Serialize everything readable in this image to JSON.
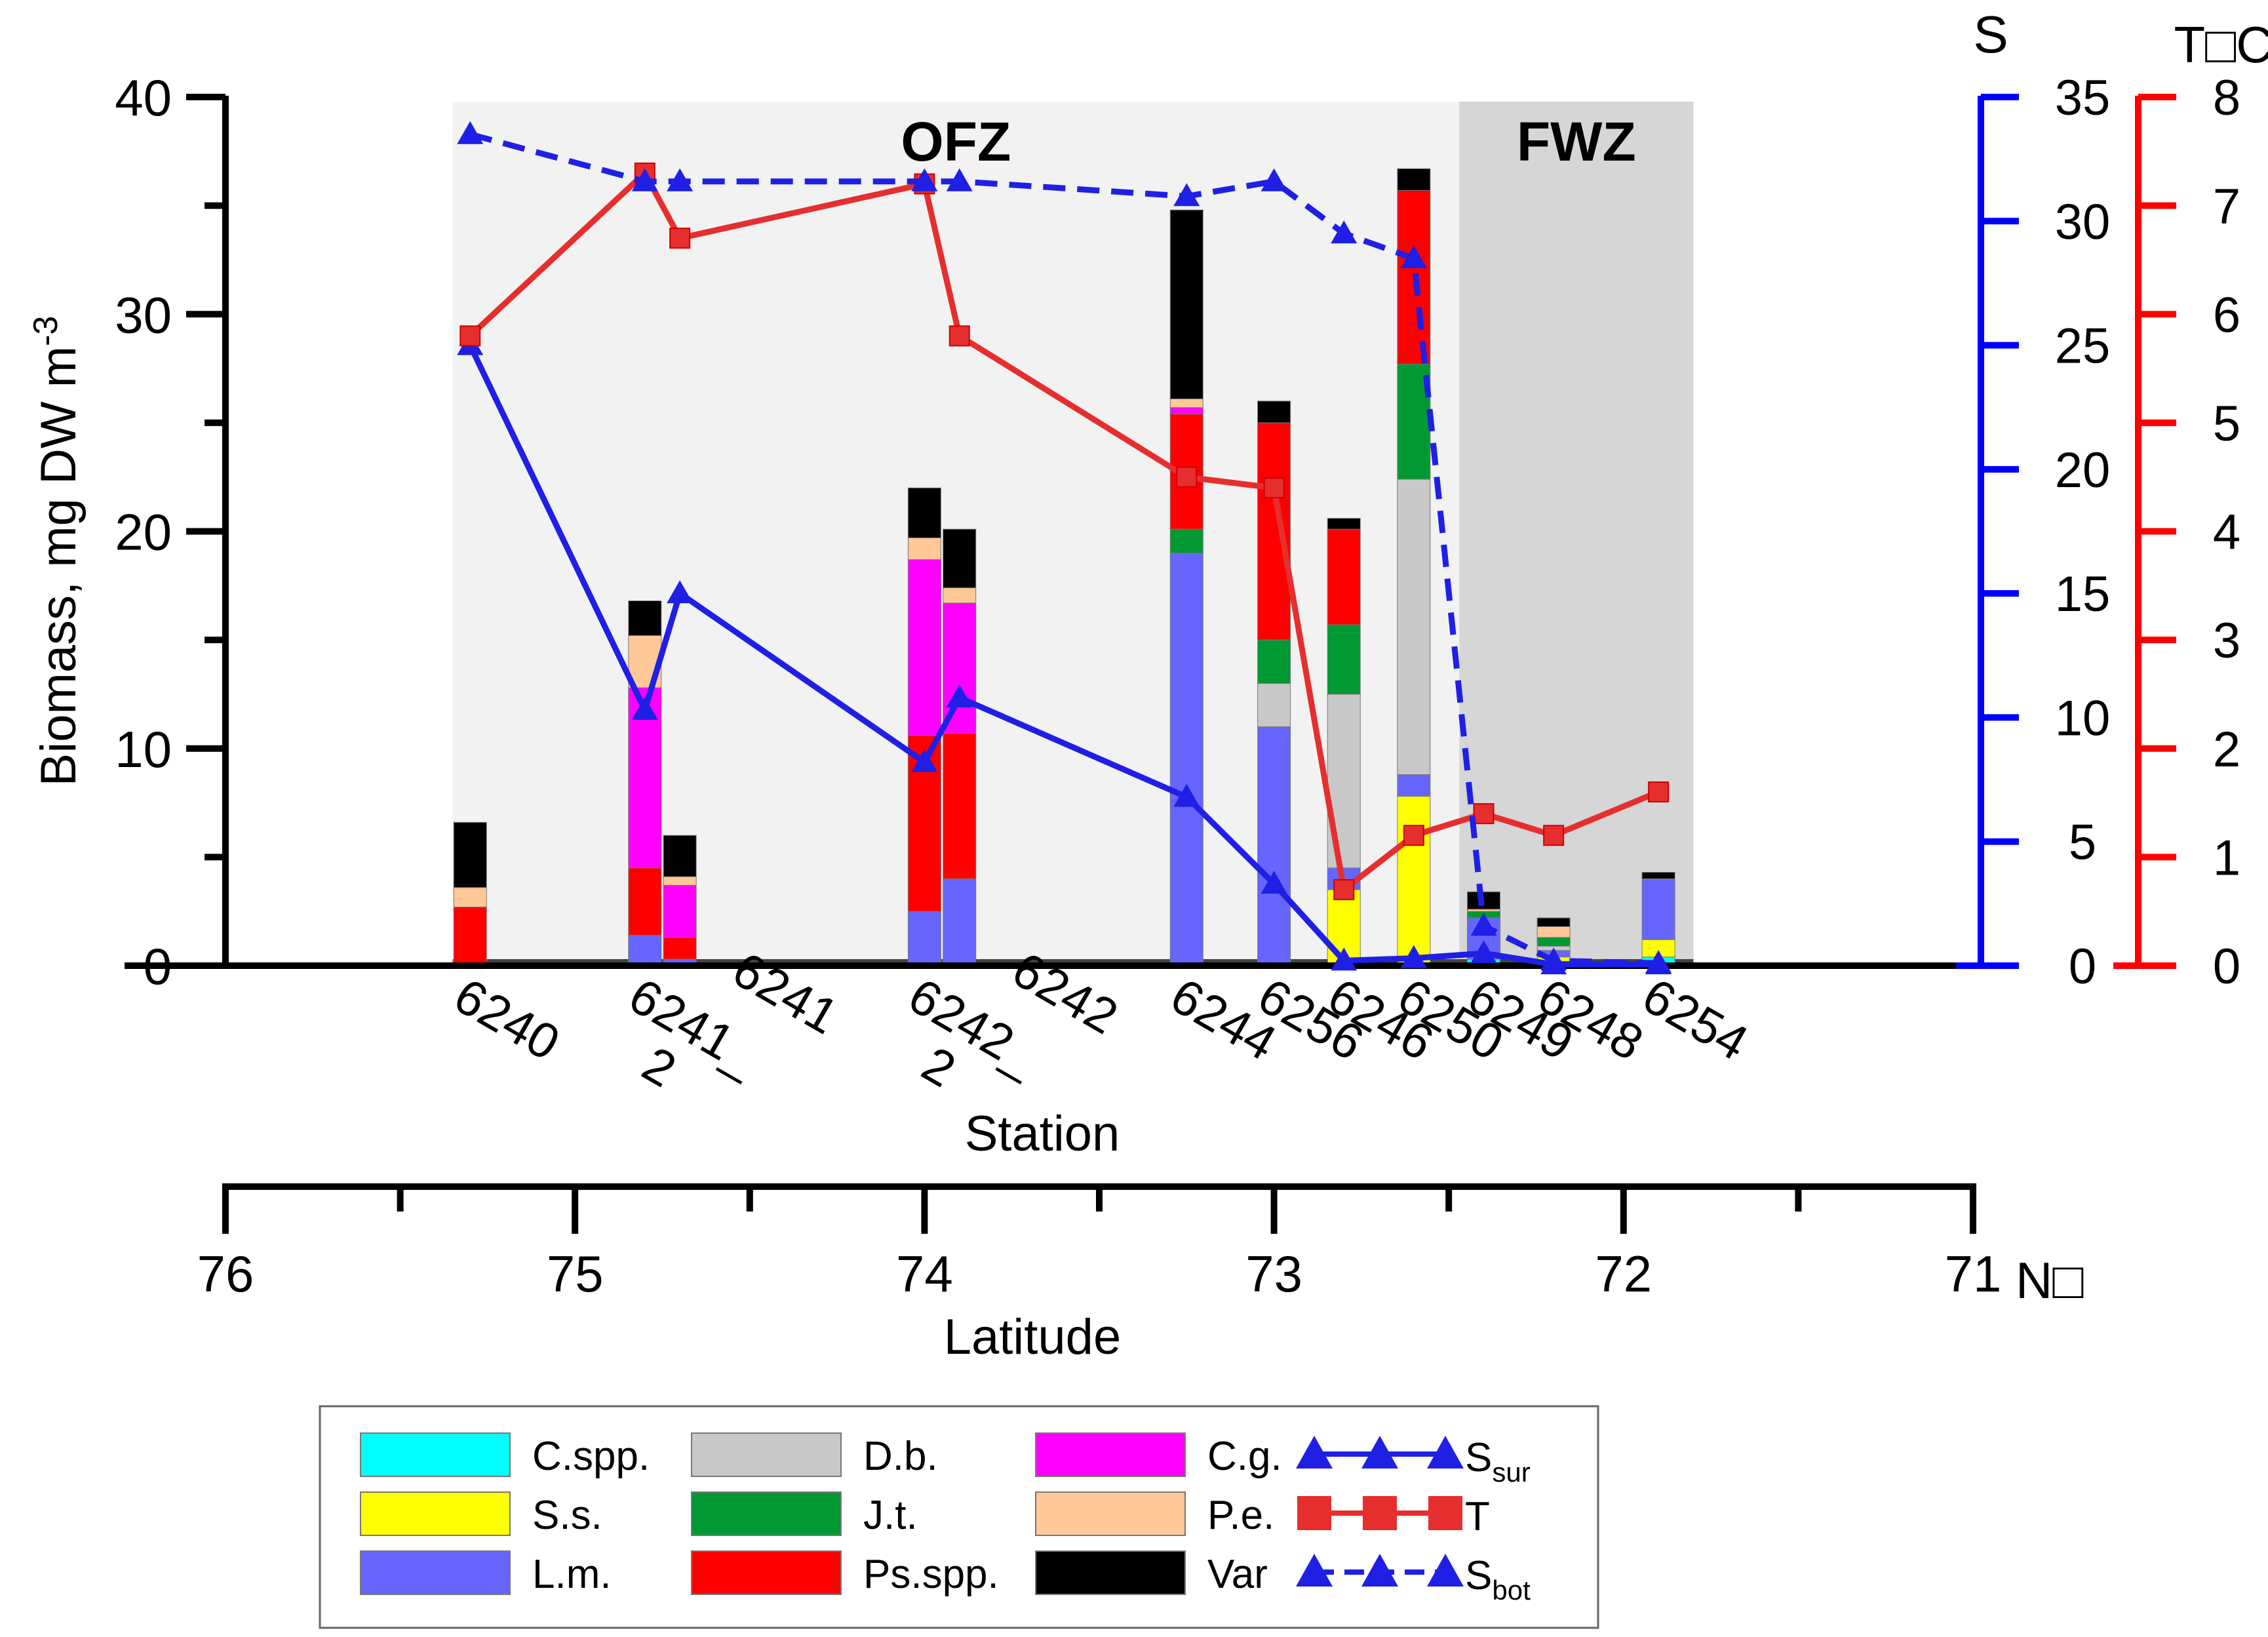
{
  "chart_data": {
    "type": "bar",
    "stacked": true,
    "title": "",
    "y_axis_left": {
      "label": "Biomass, mg DW m",
      "label_superscript": "-3",
      "ticks": [
        0,
        10,
        20,
        30,
        40
      ],
      "range": [
        0,
        40
      ]
    },
    "y_axis_salinity": {
      "label": "S",
      "ticks": [
        0,
        5,
        10,
        15,
        20,
        25,
        30,
        35
      ],
      "range": [
        0,
        35
      ],
      "color": "#0000ff"
    },
    "y_axis_temperature": {
      "label": "T□C",
      "ticks": [
        0,
        1,
        2,
        3,
        4,
        5,
        6,
        7,
        8
      ],
      "range": [
        0,
        8
      ],
      "color": "#ff0000"
    },
    "x_axis_station": {
      "label": "Station"
    },
    "x_axis_latitude": {
      "label": "Latitude",
      "unit": "N□",
      "ticks": [
        76,
        75,
        74,
        73,
        72,
        71
      ],
      "range": [
        76,
        71
      ]
    },
    "zones": [
      {
        "name": "OFZ",
        "lat_from": 75.35,
        "lat_to": 72.47,
        "color": "#f2f2f2"
      },
      {
        "name": "FWZ",
        "lat_from": 72.47,
        "lat_to": 71.8,
        "color": "#d6d6d6"
      }
    ],
    "species": [
      {
        "key": "cspp",
        "name": "C.spp.",
        "color": "#00ffff"
      },
      {
        "key": "ss",
        "name": "S.s.",
        "color": "#ffff00"
      },
      {
        "key": "lm",
        "name": "L.m.",
        "color": "#6666ff"
      },
      {
        "key": "db",
        "name": "D.b.",
        "color": "#c8c8c8"
      },
      {
        "key": "jt",
        "name": "J.t.",
        "color": "#009933"
      },
      {
        "key": "psspp",
        "name": "Ps.spp.",
        "color": "#ff0000"
      },
      {
        "key": "cg",
        "name": "C.g.",
        "color": "#ff00ff"
      },
      {
        "key": "pe",
        "name": "P.e.",
        "color": "#ffc896"
      },
      {
        "key": "var",
        "name": "Var",
        "color": "#000000"
      }
    ],
    "stations": [
      {
        "name": "6240",
        "lat": 75.3,
        "cspp": 0,
        "ss": 0,
        "lm": 0.1,
        "db": 0,
        "jt": 0,
        "psspp": 2.6,
        "cg": 0,
        "pe": 0.9,
        "var": 3.0
      },
      {
        "name": "6241_2",
        "lat": 74.8,
        "cspp": 0,
        "ss": 0,
        "lm": 1.4,
        "db": 0,
        "jt": 0,
        "psspp": 3.1,
        "cg": 8.3,
        "pe": 2.4,
        "var": 1.6
      },
      {
        "name": "6241",
        "lat": 74.7,
        "cspp": 0,
        "ss": 0,
        "lm": 0.3,
        "db": 0,
        "jt": 0,
        "psspp": 1.0,
        "cg": 2.4,
        "pe": 0.4,
        "var": 1.9
      },
      {
        "name": "6242_2",
        "lat": 74.0,
        "cspp": 0,
        "ss": 0,
        "lm": 2.5,
        "db": 0,
        "jt": 0,
        "psspp": 8.1,
        "cg": 8.1,
        "pe": 1.0,
        "var": 2.3
      },
      {
        "name": "6242",
        "lat": 73.9,
        "cspp": 0,
        "ss": 0,
        "lm": 4.0,
        "db": 0,
        "jt": 0,
        "psspp": 6.7,
        "cg": 6.0,
        "pe": 0.7,
        "var": 2.7
      },
      {
        "name": "6244",
        "lat": 73.25,
        "cspp": 0,
        "ss": 0,
        "lm": 19.0,
        "db": 0,
        "jt": 1.1,
        "psspp": 5.3,
        "cg": 0.3,
        "pe": 0.4,
        "var": 8.7
      },
      {
        "name": "6256",
        "lat": 73.0,
        "cspp": 0,
        "ss": 0,
        "lm": 11.0,
        "db": 2.0,
        "jt": 2.0,
        "psspp": 10.0,
        "cg": 0,
        "pe": 0,
        "var": 1.0
      },
      {
        "name": "6246",
        "lat": 72.8,
        "cspp": 0,
        "ss": 3.5,
        "lm": 1.0,
        "db": 8.0,
        "jt": 3.2,
        "psspp": 4.4,
        "cg": 0,
        "pe": 0,
        "var": 0.5
      },
      {
        "name": "6250",
        "lat": 72.6,
        "cspp": 0,
        "ss": 7.8,
        "lm": 1.0,
        "db": 13.6,
        "jt": 5.3,
        "psspp": 8.0,
        "cg": 0,
        "pe": 0,
        "var": 1.0
      },
      {
        "name": "6249",
        "lat": 72.4,
        "cspp": 0.3,
        "ss": 0,
        "lm": 1.9,
        "db": 0,
        "jt": 0.3,
        "psspp": 0,
        "cg": 0,
        "pe": 0.1,
        "var": 0.8
      },
      {
        "name": "6248",
        "lat": 72.2,
        "cspp": 0.2,
        "ss": 0.2,
        "lm": 0.3,
        "db": 0.2,
        "jt": 0.4,
        "psspp": 0,
        "cg": 0,
        "pe": 0.5,
        "var": 0.4
      },
      {
        "name": "6254",
        "lat": 71.9,
        "cspp": 0.4,
        "ss": 0.8,
        "lm": 2.8,
        "db": 0,
        "jt": 0,
        "psspp": 0,
        "cg": 0,
        "pe": 0,
        "var": 0.3
      }
    ],
    "series": [
      {
        "name": "S_sur",
        "axis": "salinity",
        "style": "solid",
        "marker": "triangle",
        "color": "#1f1fe6",
        "points": [
          [
            75.3,
            25.0
          ],
          [
            74.8,
            10.3
          ],
          [
            74.7,
            15.0
          ],
          [
            74.0,
            8.2
          ],
          [
            73.9,
            10.8
          ],
          [
            73.25,
            6.8
          ],
          [
            73.0,
            3.3
          ],
          [
            72.8,
            0.2
          ],
          [
            72.6,
            0.3
          ],
          [
            72.4,
            0.5
          ],
          [
            72.2,
            0.05
          ],
          [
            71.9,
            0.05
          ]
        ]
      },
      {
        "name": "T",
        "axis": "temperature",
        "style": "solid",
        "marker": "square",
        "color": "#e62e2e",
        "points": [
          [
            75.3,
            5.8
          ],
          [
            74.8,
            7.3
          ],
          [
            74.7,
            6.7
          ],
          [
            74.0,
            7.2
          ],
          [
            73.9,
            5.8
          ],
          [
            73.25,
            4.5
          ],
          [
            73.0,
            4.4
          ],
          [
            72.8,
            0.7
          ],
          [
            72.6,
            1.2
          ],
          [
            72.4,
            1.4
          ],
          [
            72.2,
            1.2
          ],
          [
            71.9,
            1.6
          ]
        ]
      },
      {
        "name": "S_bot",
        "axis": "salinity",
        "style": "dashed",
        "marker": "triangle",
        "color": "#1f1fe6",
        "points": [
          [
            75.3,
            33.5
          ],
          [
            74.8,
            31.6
          ],
          [
            74.7,
            31.6
          ],
          [
            74.0,
            31.6
          ],
          [
            73.9,
            31.6
          ],
          [
            73.25,
            31.0
          ],
          [
            73.0,
            31.6
          ],
          [
            72.8,
            29.5
          ],
          [
            72.6,
            28.5
          ],
          [
            72.4,
            1.6
          ],
          [
            72.2,
            0.2
          ],
          [
            71.9,
            0.1
          ]
        ]
      }
    ],
    "legend": {
      "placement": "bottom",
      "line_items": [
        {
          "name": "S",
          "sub": "sur"
        },
        {
          "name": "T",
          "sub": ""
        },
        {
          "name": "S",
          "sub": "bot"
        }
      ]
    }
  }
}
